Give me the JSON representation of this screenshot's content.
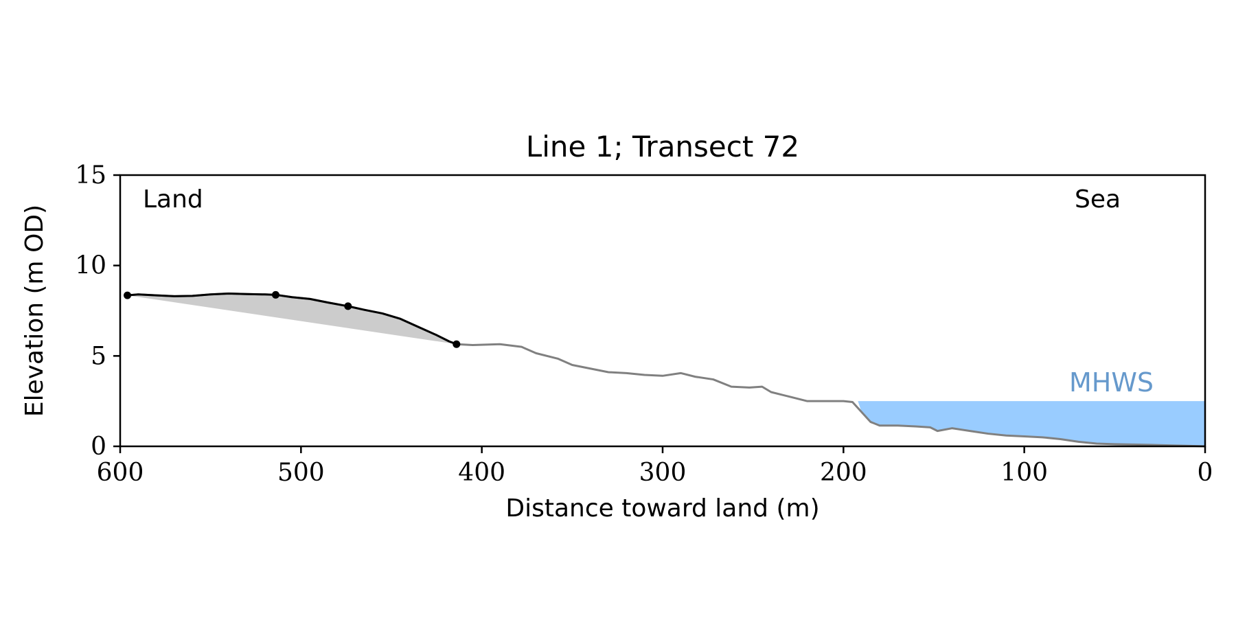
{
  "chart_data": {
    "type": "line",
    "title": "Line 1; Transect 72",
    "xlabel": "Distance toward land (m)",
    "ylabel": "Elevation (m OD)",
    "xlim": [
      600,
      0
    ],
    "ylim": [
      0,
      15
    ],
    "x_ticks": [
      600,
      500,
      400,
      300,
      200,
      100,
      0
    ],
    "y_ticks": [
      0,
      5,
      10,
      15
    ],
    "grid": false,
    "annotations": {
      "land": "Land",
      "sea": "Sea",
      "mhws": "MHWS"
    },
    "mhws_level": 2.5,
    "mhws_x_range": [
      192,
      0
    ],
    "colors": {
      "profile": "#808080",
      "highlight": "#000000",
      "fill": "#cccccc",
      "sea": "#99ccff",
      "mhws_text": "#6699cc"
    },
    "series": [
      {
        "values": [
          [
            596,
            8.35
          ],
          [
            590,
            8.4
          ],
          [
            580,
            8.35
          ],
          [
            570,
            8.3
          ],
          [
            560,
            8.32
          ],
          [
            550,
            8.4
          ],
          [
            540,
            8.45
          ],
          [
            530,
            8.42
          ],
          [
            520,
            8.4
          ],
          [
            514,
            8.38
          ],
          [
            505,
            8.25
          ],
          [
            495,
            8.15
          ],
          [
            485,
            7.95
          ],
          [
            474,
            7.75
          ],
          [
            465,
            7.55
          ],
          [
            455,
            7.35
          ],
          [
            445,
            7.05
          ],
          [
            435,
            6.6
          ],
          [
            425,
            6.15
          ],
          [
            418,
            5.8
          ],
          [
            414,
            5.65
          ],
          [
            405,
            5.6
          ],
          [
            390,
            5.65
          ],
          [
            378,
            5.5
          ],
          [
            370,
            5.15
          ],
          [
            358,
            4.85
          ],
          [
            350,
            4.5
          ],
          [
            340,
            4.3
          ],
          [
            330,
            4.1
          ],
          [
            320,
            4.05
          ],
          [
            310,
            3.95
          ],
          [
            300,
            3.9
          ],
          [
            290,
            4.05
          ],
          [
            282,
            3.85
          ],
          [
            272,
            3.7
          ],
          [
            262,
            3.3
          ],
          [
            252,
            3.25
          ],
          [
            245,
            3.3
          ],
          [
            240,
            3.0
          ],
          [
            230,
            2.75
          ],
          [
            220,
            2.5
          ],
          [
            210,
            2.5
          ],
          [
            200,
            2.5
          ],
          [
            195,
            2.45
          ],
          [
            190,
            1.9
          ],
          [
            185,
            1.35
          ],
          [
            180,
            1.15
          ],
          [
            170,
            1.15
          ],
          [
            160,
            1.1
          ],
          [
            152,
            1.05
          ],
          [
            148,
            0.85
          ],
          [
            140,
            1.0
          ],
          [
            130,
            0.85
          ],
          [
            120,
            0.7
          ],
          [
            110,
            0.6
          ],
          [
            100,
            0.55
          ],
          [
            90,
            0.5
          ],
          [
            80,
            0.4
          ],
          [
            70,
            0.25
          ],
          [
            60,
            0.15
          ],
          [
            50,
            0.12
          ],
          [
            40,
            0.1
          ],
          [
            30,
            0.08
          ],
          [
            20,
            0.05
          ],
          [
            10,
            0.03
          ],
          [
            0,
            0.0
          ]
        ]
      }
    ],
    "highlight_points": [
      [
        596,
        8.35
      ],
      [
        514,
        8.38
      ],
      [
        474,
        7.75
      ],
      [
        414,
        5.65
      ]
    ]
  }
}
